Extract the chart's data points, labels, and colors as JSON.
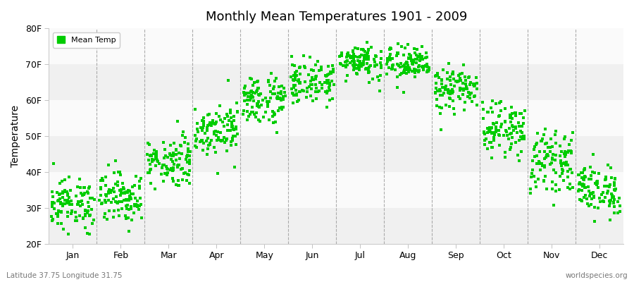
{
  "title": "Monthly Mean Temperatures 1901 - 2009",
  "ylabel": "Temperature",
  "xlabel_months": [
    "Jan",
    "Feb",
    "Mar",
    "Apr",
    "May",
    "Jun",
    "Jul",
    "Aug",
    "Sep",
    "Oct",
    "Nov",
    "Dec"
  ],
  "ytick_labels": [
    "20F",
    "30F",
    "40F",
    "50F",
    "60F",
    "70F",
    "80F"
  ],
  "ytick_values": [
    20,
    30,
    40,
    50,
    60,
    70,
    80
  ],
  "ylim": [
    20,
    80
  ],
  "marker_color": "#00cc00",
  "legend_label": "Mean Temp",
  "subtitle": "Latitude 37.75 Longitude 31.75",
  "watermark": "worldspecies.org",
  "bg_color": "#ffffff",
  "band_colors": [
    "#f0f0f0",
    "#fafafa"
  ],
  "dash_color": "#999999",
  "mean_temps": {
    "Jan": {
      "mean": 31,
      "std": 3.5
    },
    "Feb": {
      "mean": 33,
      "std": 3.5
    },
    "Mar": {
      "mean": 43,
      "std": 3.5
    },
    "Apr": {
      "mean": 52,
      "std": 3.5
    },
    "May": {
      "mean": 60,
      "std": 3.5
    },
    "Jun": {
      "mean": 65,
      "std": 3.0
    },
    "Jul": {
      "mean": 71,
      "std": 2.5
    },
    "Aug": {
      "mean": 70,
      "std": 2.5
    },
    "Sep": {
      "mean": 63,
      "std": 3.0
    },
    "Oct": {
      "mean": 52,
      "std": 3.5
    },
    "Nov": {
      "mean": 43,
      "std": 4.0
    },
    "Dec": {
      "mean": 35,
      "std": 3.5
    }
  },
  "n_years": 109
}
